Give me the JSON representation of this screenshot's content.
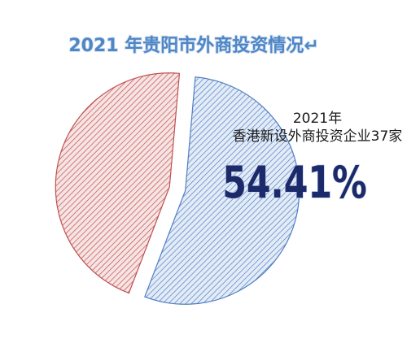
{
  "chart_data": {
    "type": "pie",
    "title": "2021 年贵阳市外商投资情况↵",
    "annotation": [
      "2021年",
      "香港新设外商投资企业37家"
    ],
    "categories": [
      null,
      null
    ],
    "values": [
      54.41,
      45.59
    ],
    "value_labels": [
      "54.41%",
      null
    ],
    "colors": [
      "#4f7fc4",
      "#c0504d"
    ]
  }
}
